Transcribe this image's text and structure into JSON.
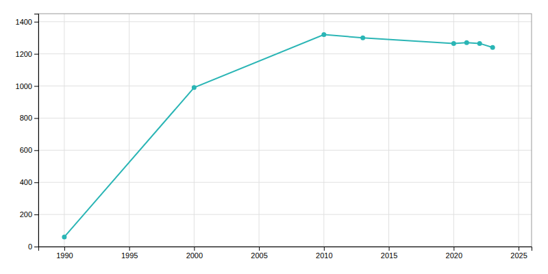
{
  "chart_data": {
    "type": "line",
    "x": [
      1990,
      2000,
      2010,
      2013,
      2020,
      2021,
      2022,
      2023
    ],
    "values": [
      60,
      990,
      1320,
      1300,
      1265,
      1270,
      1265,
      1240
    ],
    "color": "#2ab5b5",
    "marker": "circle",
    "xlim": [
      1988,
      2026
    ],
    "xticks": [
      1990,
      1995,
      2000,
      2005,
      2010,
      2015,
      2020,
      2025
    ],
    "ylim": [
      0,
      1450
    ],
    "yticks": [
      0,
      200,
      400,
      600,
      800,
      1000,
      1200,
      1400
    ],
    "grid": true
  }
}
